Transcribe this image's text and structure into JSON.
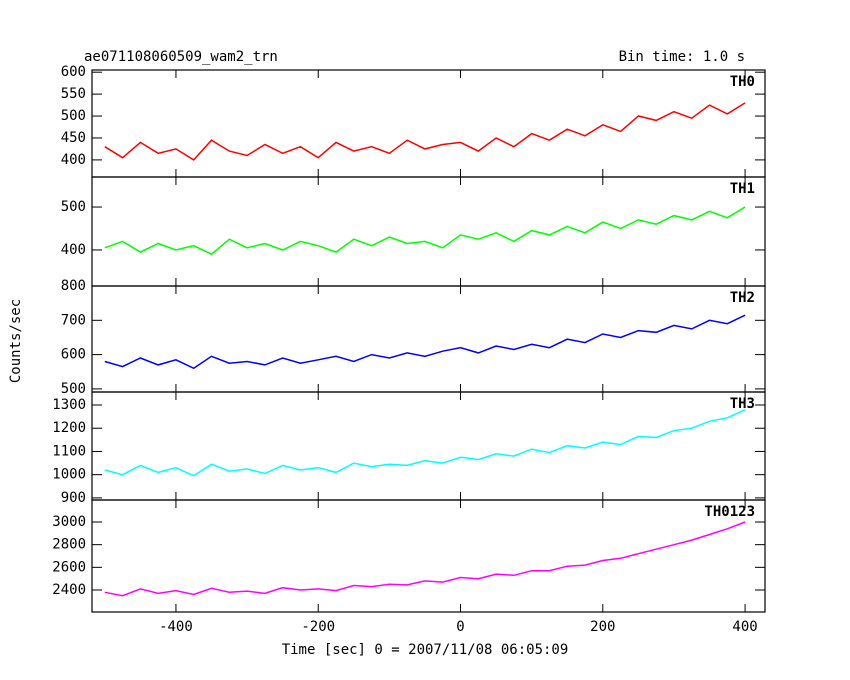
{
  "header": {
    "title": "ae071108060509_wam2_trn",
    "bin_time": "Bin time: 1.0 s"
  },
  "ylabel": "Counts/sec",
  "xlabel": "Time [sec] 0 = 2007/11/08 06:05:09",
  "chart_data": [
    {
      "type": "line",
      "xlim": [
        -518,
        428
      ],
      "ylim": [
        361,
        605
      ],
      "yticks": [
        400,
        450,
        500,
        550,
        600
      ],
      "x": [
        -500,
        -475,
        -450,
        -425,
        -400,
        -375,
        -350,
        -325,
        -300,
        -275,
        -250,
        -225,
        -200,
        -175,
        -150,
        -125,
        -100,
        -75,
        -50,
        -25,
        0,
        25,
        50,
        75,
        100,
        125,
        150,
        175,
        200,
        225,
        250,
        275,
        300,
        325,
        350,
        375,
        400
      ],
      "series": [
        {
          "name": "TH0",
          "color": "#ff0000",
          "values": [
            430,
            405,
            440,
            415,
            425,
            400,
            445,
            420,
            410,
            435,
            415,
            430,
            405,
            440,
            420,
            430,
            415,
            445,
            425,
            435,
            440,
            420,
            450,
            430,
            460,
            445,
            470,
            455,
            480,
            465,
            500,
            490,
            510,
            495,
            525,
            505,
            530
          ]
        }
      ]
    },
    {
      "type": "line",
      "xlim": [
        -518,
        428
      ],
      "ylim": [
        316,
        570
      ],
      "yticks": [
        400,
        500
      ],
      "x": [
        -500,
        -475,
        -450,
        -425,
        -400,
        -375,
        -350,
        -325,
        -300,
        -275,
        -250,
        -225,
        -200,
        -175,
        -150,
        -125,
        -100,
        -75,
        -50,
        -25,
        0,
        25,
        50,
        75,
        100,
        125,
        150,
        175,
        200,
        225,
        250,
        275,
        300,
        325,
        350,
        375,
        400
      ],
      "series": [
        {
          "name": "TH1",
          "color": "#00ff00",
          "values": [
            405,
            420,
            395,
            415,
            400,
            410,
            390,
            425,
            405,
            415,
            400,
            420,
            410,
            395,
            425,
            410,
            430,
            415,
            420,
            405,
            435,
            425,
            440,
            420,
            445,
            435,
            455,
            440,
            465,
            450,
            470,
            460,
            480,
            470,
            490,
            475,
            500
          ]
        }
      ]
    },
    {
      "type": "line",
      "xlim": [
        -518,
        428
      ],
      "ylim": [
        491,
        800
      ],
      "yticks": [
        500,
        600,
        700,
        800
      ],
      "x": [
        -500,
        -475,
        -450,
        -425,
        -400,
        -375,
        -350,
        -325,
        -300,
        -275,
        -250,
        -225,
        -200,
        -175,
        -150,
        -125,
        -100,
        -75,
        -50,
        -25,
        0,
        25,
        50,
        75,
        100,
        125,
        150,
        175,
        200,
        225,
        250,
        275,
        300,
        325,
        350,
        375,
        400
      ],
      "series": [
        {
          "name": "TH2",
          "color": "#0000ff",
          "values": [
            580,
            565,
            590,
            570,
            585,
            560,
            595,
            575,
            580,
            570,
            590,
            575,
            585,
            595,
            580,
            600,
            590,
            605,
            595,
            610,
            620,
            605,
            625,
            615,
            630,
            620,
            645,
            635,
            660,
            650,
            670,
            665,
            685,
            675,
            700,
            690,
            715
          ]
        }
      ]
    },
    {
      "type": "line",
      "xlim": [
        -518,
        428
      ],
      "ylim": [
        891,
        1356
      ],
      "yticks": [
        900,
        1000,
        1100,
        1200,
        1300
      ],
      "x": [
        -500,
        -475,
        -450,
        -425,
        -400,
        -375,
        -350,
        -325,
        -300,
        -275,
        -250,
        -225,
        -200,
        -175,
        -150,
        -125,
        -100,
        -75,
        -50,
        -25,
        0,
        25,
        50,
        75,
        100,
        125,
        150,
        175,
        200,
        225,
        250,
        275,
        300,
        325,
        350,
        375,
        400
      ],
      "series": [
        {
          "name": "TH3",
          "color": "#00ffff",
          "values": [
            1020,
            1000,
            1040,
            1010,
            1030,
            995,
            1045,
            1015,
            1025,
            1005,
            1040,
            1020,
            1030,
            1010,
            1050,
            1035,
            1045,
            1040,
            1060,
            1050,
            1075,
            1065,
            1090,
            1080,
            1110,
            1095,
            1125,
            1115,
            1140,
            1130,
            1165,
            1160,
            1190,
            1200,
            1230,
            1245,
            1280
          ]
        }
      ]
    },
    {
      "type": "line",
      "xlim": [
        -518,
        428
      ],
      "ylim": [
        2206,
        3194
      ],
      "yticks": [
        2400,
        2600,
        2800,
        3000
      ],
      "xticks": [
        -400,
        -200,
        0,
        200,
        400
      ],
      "x": [
        -500,
        -475,
        -450,
        -425,
        -400,
        -375,
        -350,
        -325,
        -300,
        -275,
        -250,
        -225,
        -200,
        -175,
        -150,
        -125,
        -100,
        -75,
        -50,
        -25,
        0,
        25,
        50,
        75,
        100,
        125,
        150,
        175,
        200,
        225,
        250,
        275,
        300,
        325,
        350,
        375,
        400
      ],
      "series": [
        {
          "name": "TH0123",
          "color": "#ff00ff",
          "values": [
            2380,
            2350,
            2410,
            2370,
            2395,
            2360,
            2415,
            2380,
            2390,
            2370,
            2420,
            2400,
            2410,
            2395,
            2440,
            2430,
            2450,
            2445,
            2480,
            2470,
            2510,
            2500,
            2540,
            2530,
            2570,
            2570,
            2610,
            2620,
            2660,
            2680,
            2720,
            2760,
            2800,
            2840,
            2890,
            2940,
            3000
          ]
        }
      ]
    }
  ]
}
